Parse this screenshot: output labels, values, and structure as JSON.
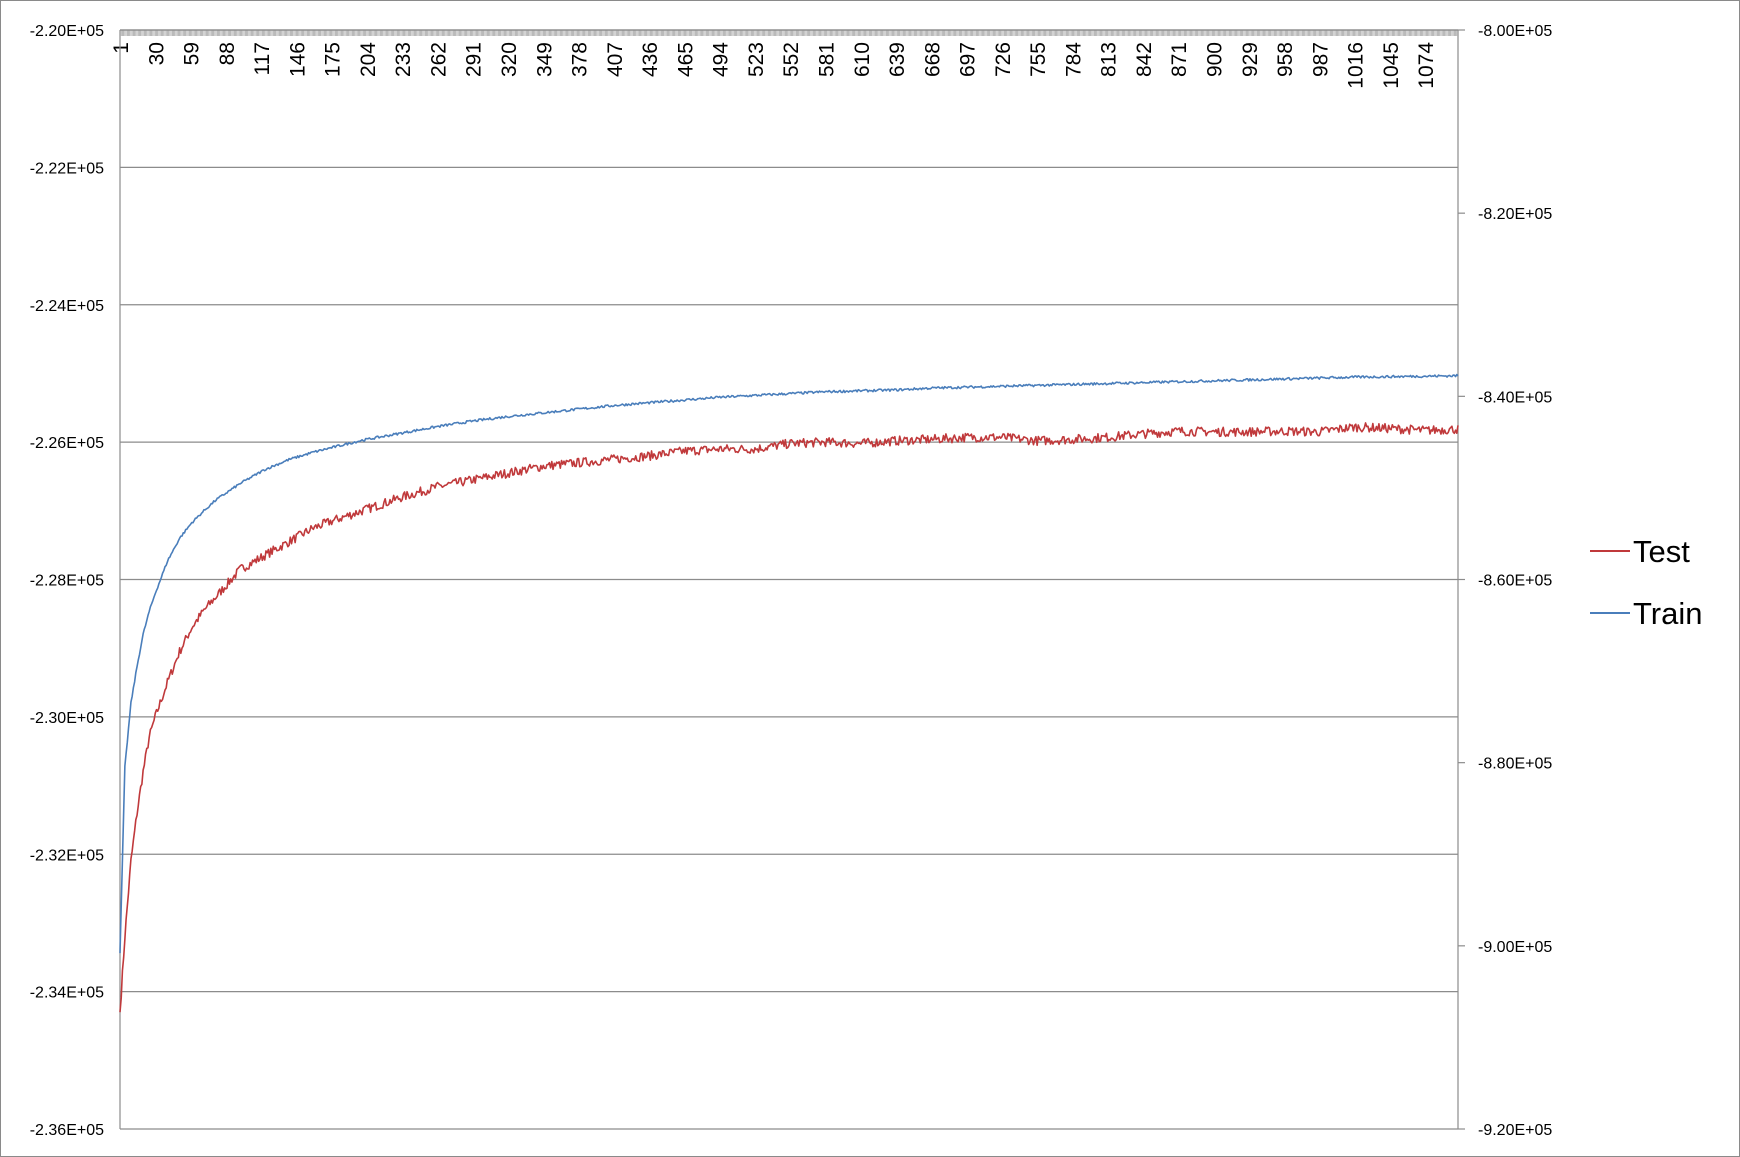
{
  "chart_data": {
    "type": "line",
    "title": "",
    "xlabel": "",
    "ylabel": "",
    "x_tick_labels": [
      "1",
      "30",
      "59",
      "88",
      "117",
      "146",
      "175",
      "204",
      "233",
      "262",
      "291",
      "320",
      "349",
      "378",
      "407",
      "436",
      "465",
      "494",
      "523",
      "552",
      "581",
      "610",
      "639",
      "668",
      "697",
      "726",
      "755",
      "784",
      "813",
      "842",
      "871",
      "900",
      "929",
      "958",
      "987",
      "1016",
      "1045",
      "1074"
    ],
    "x_range": [
      1,
      1101
    ],
    "y_left": {
      "lim": [
        -236000,
        -220000
      ],
      "tick_values": [
        -220000,
        -222000,
        -224000,
        -226000,
        -228000,
        -230000,
        -232000,
        -234000,
        -236000
      ],
      "tick_labels": [
        "-2.20E+05",
        "-2.22E+05",
        "-2.24E+05",
        "-2.26E+05",
        "-2.28E+05",
        "-2.30E+05",
        "-2.32E+05",
        "-2.34E+05",
        "-2.36E+05"
      ]
    },
    "y_right": {
      "lim": [
        -920000,
        -800000
      ],
      "tick_values": [
        -800000,
        -820000,
        -840000,
        -860000,
        -880000,
        -900000,
        -920000
      ],
      "tick_labels": [
        "-8.00E+05",
        "-8.20E+05",
        "-8.40E+05",
        "-8.60E+05",
        "-8.80E+05",
        "-9.00E+05",
        "-9.20E+05"
      ]
    },
    "grid": true,
    "legend_position": "right",
    "series": [
      {
        "name": "Test",
        "color": "#c0393b",
        "axis": "left",
        "x": [
          1,
          5,
          10,
          15,
          20,
          25,
          30,
          40,
          50,
          60,
          70,
          80,
          90,
          100,
          120,
          140,
          160,
          175,
          200,
          233,
          262,
          291,
          320,
          349,
          378,
          407,
          436,
          465,
          494,
          523,
          552,
          581,
          610,
          639,
          668,
          697,
          726,
          755,
          784,
          813,
          842,
          871,
          900,
          929,
          958,
          987,
          1016,
          1045,
          1074,
          1101
        ],
        "y": [
          -234300,
          -233200,
          -232100,
          -231400,
          -230800,
          -230300,
          -230000,
          -229500,
          -229050,
          -228700,
          -228450,
          -228250,
          -228050,
          -227850,
          -227650,
          -227450,
          -227250,
          -227150,
          -227000,
          -226800,
          -226650,
          -226550,
          -226450,
          -226350,
          -226300,
          -226250,
          -226200,
          -226130,
          -226100,
          -226100,
          -226020,
          -226000,
          -226020,
          -225980,
          -225960,
          -225930,
          -225930,
          -225980,
          -225960,
          -225930,
          -225880,
          -225840,
          -225850,
          -225850,
          -225840,
          -225850,
          -225780,
          -225800,
          -225830,
          -225810
        ]
      },
      {
        "name": "Train",
        "color": "#4a7ebb",
        "axis": "right",
        "x": [
          1,
          5,
          10,
          15,
          20,
          25,
          30,
          40,
          50,
          60,
          70,
          80,
          90,
          100,
          120,
          140,
          160,
          175,
          200,
          233,
          262,
          291,
          320,
          349,
          378,
          407,
          436,
          465,
          494,
          523,
          552,
          581,
          610,
          639,
          668,
          697,
          726,
          755,
          784,
          813,
          842,
          871,
          900,
          929,
          958,
          987,
          1016,
          1045,
          1074,
          1101
        ],
        "y": [
          -900800,
          -880500,
          -873500,
          -869500,
          -866000,
          -863500,
          -861500,
          -858000,
          -855500,
          -853800,
          -852500,
          -851300,
          -850400,
          -849500,
          -848000,
          -846900,
          -846100,
          -845600,
          -844800,
          -844000,
          -843300,
          -842700,
          -842200,
          -841800,
          -841400,
          -841000,
          -840700,
          -840400,
          -840100,
          -839900,
          -839700,
          -839500,
          -839400,
          -839300,
          -839100,
          -839000,
          -838900,
          -838800,
          -838700,
          -838600,
          -838500,
          -838400,
          -838300,
          -838200,
          -838100,
          -838000,
          -837900,
          -837850,
          -837800,
          -837750
        ]
      }
    ]
  }
}
